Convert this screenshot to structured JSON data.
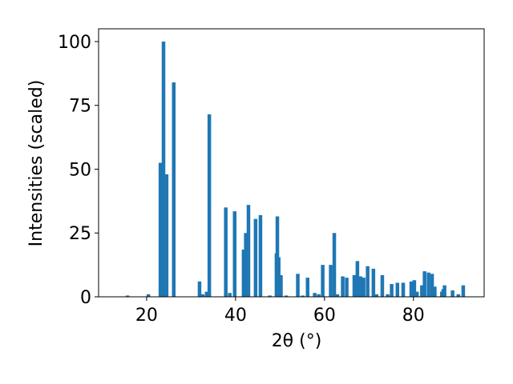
{
  "chart_data": {
    "type": "bar",
    "color": "#1f77b4",
    "x_label": "2θ (°)",
    "y_label": "Intensities (scaled)",
    "x": [
      15.7,
      20.4,
      23.1,
      23.8,
      24.5,
      26.1,
      31.9,
      32.6,
      33.5,
      34.1,
      37.8,
      38.7,
      39.8,
      41.8,
      42.3,
      42.9,
      44.5,
      45.6,
      47.7,
      49.2,
      49.4,
      49.7,
      50.2,
      51.4,
      54.0,
      55.1,
      56.2,
      57.8,
      58.7,
      59.6,
      61.4,
      62.2,
      62.9,
      64.1,
      65.0,
      66.7,
      67.4,
      68.1,
      68.8,
      69.7,
      71.0,
      71.7,
      73.0,
      74.2,
      75.1,
      76.4,
      77.7,
      79.5,
      80.2,
      80.8,
      81.9,
      82.5,
      83.4,
      84.2,
      84.8,
      86.4,
      86.7,
      87.0,
      88.8,
      90.1,
      91.2
    ],
    "values": [
      0.5,
      1,
      52.5,
      100,
      48,
      84,
      6,
      1,
      2,
      71.5,
      35,
      1.5,
      33.5,
      18.5,
      25,
      36,
      30.5,
      32,
      0.5,
      17,
      31.5,
      15.5,
      8.5,
      0.5,
      9,
      0.5,
      7.5,
      1.5,
      1,
      12.5,
      12.5,
      25,
      1,
      8,
      7.5,
      8.5,
      14,
      8,
      7.5,
      12,
      11,
      1,
      8.5,
      1,
      5,
      5.5,
      5.5,
      6,
      6.5,
      2,
      4.5,
      10,
      9.5,
      9,
      4,
      2,
      3,
      4.5,
      2.5,
      1,
      4.5
    ],
    "xlim": [
      9.2,
      95.9
    ],
    "xticks": [
      20,
      40,
      60,
      80
    ],
    "ylim": [
      0,
      105
    ],
    "yticks": [
      0,
      25,
      50,
      75,
      100
    ]
  }
}
